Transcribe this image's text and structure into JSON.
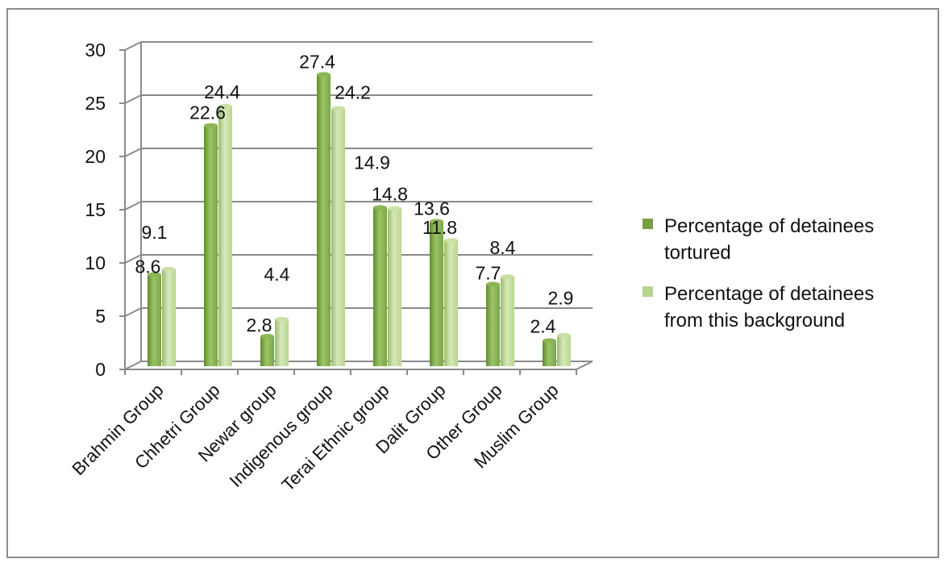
{
  "chart_data": {
    "type": "bar",
    "title": "",
    "xlabel": "",
    "ylabel": "",
    "ylim": [
      0,
      30
    ],
    "yticks": [
      0,
      5,
      10,
      15,
      20,
      25,
      30
    ],
    "grid": true,
    "legend_position": "right",
    "categories": [
      "Brahmin Group",
      "Chhetri Group",
      "Newar group",
      "Indigenous group",
      "Terai Ethnic group",
      "Dalit Group",
      "Other Group",
      "Muslim Group"
    ],
    "series": [
      {
        "name": "Percentage of detainees tortured",
        "values": [
          8.6,
          22.6,
          2.8,
          27.4,
          14.9,
          13.6,
          7.7,
          2.4
        ],
        "color": "#77a043"
      },
      {
        "name": "Percentage of detainees from this background",
        "values": [
          9.1,
          24.4,
          4.4,
          24.2,
          14.8,
          11.8,
          8.4,
          2.9
        ],
        "color": "#b7d48c"
      }
    ],
    "value_labels": [
      [
        "8.6",
        "22.6",
        "2.8",
        "27.4",
        "14.9",
        "13.6",
        "7.7",
        "2.4"
      ],
      [
        "9.1",
        "24.4",
        "4.4",
        "24.2",
        "14.8",
        "11.8",
        "8.4",
        "2.9"
      ]
    ],
    "legend": [
      {
        "lines": [
          "Percentage of detainees",
          "tortured"
        ]
      },
      {
        "lines": [
          "Percentage of detainees",
          "from this background"
        ]
      }
    ]
  }
}
